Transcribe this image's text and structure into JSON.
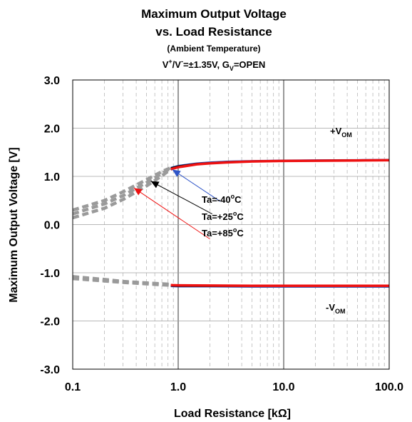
{
  "chart_data": {
    "type": "line",
    "title": "Maximum Output Voltage",
    "title_line2": "vs. Load Resistance",
    "subtitle": "(Ambient Temperature)",
    "condition": {
      "v": "V",
      "plus": "+",
      "slash": "/V",
      "minus": "-",
      "text1": "=±1.35V, G",
      "sub": "V",
      "text2": "=OPEN"
    },
    "xlabel": "Load Resistance [kΩ]",
    "ylabel": "Maximum Output Voltage [V]",
    "xscale": "log",
    "xlim": [
      0.1,
      100
    ],
    "ylim": [
      -3,
      3
    ],
    "x_ticks": [
      0.1,
      1,
      10,
      100
    ],
    "x_tick_labels": [
      "0.1",
      "1.0",
      "10.0",
      "100.0"
    ],
    "y_ticks": [
      3,
      2,
      1,
      0,
      -1,
      -2,
      -3
    ],
    "y_tick_labels": [
      "3.0",
      "2.0",
      "1.0",
      "0.0",
      "-1.0",
      "-2.0",
      "-3.0"
    ],
    "grid": true,
    "colors": {
      "ta_minus40": "#2f55c8",
      "ta_plus25": "#000000",
      "ta_plus85": "#ee1111",
      "extrapolated": "#9a9a9a"
    },
    "series": [
      {
        "name": "Ta=-40°C",
        "color": "#2f55c8",
        "x": [
          0.85,
          1,
          1.5,
          2,
          3,
          5,
          10,
          20,
          50,
          100
        ],
        "y": [
          1.18,
          1.22,
          1.27,
          1.29,
          1.31,
          1.32,
          1.33,
          1.335,
          1.34,
          1.345
        ],
        "x_neg": [
          0.85,
          1,
          2,
          5,
          10,
          20,
          50,
          100
        ],
        "y_neg": [
          -1.28,
          -1.285,
          -1.285,
          -1.29,
          -1.29,
          -1.29,
          -1.29,
          -1.29
        ],
        "extrap_x": [
          0.1,
          0.2,
          0.3,
          0.5,
          0.7,
          0.85
        ],
        "extrap_y": [
          0.3,
          0.5,
          0.68,
          0.93,
          1.1,
          1.18
        ],
        "extrap_x_neg": [
          0.1,
          0.2,
          0.3,
          0.5,
          0.7,
          0.85
        ],
        "extrap_y_neg": [
          -1.12,
          -1.17,
          -1.2,
          -1.23,
          -1.25,
          -1.26
        ]
      },
      {
        "name": "Ta=+25°C",
        "color": "#000000",
        "x": [
          0.85,
          1,
          1.5,
          2,
          3,
          5,
          10,
          20,
          50,
          100
        ],
        "y": [
          1.17,
          1.21,
          1.26,
          1.28,
          1.3,
          1.315,
          1.325,
          1.33,
          1.335,
          1.34
        ],
        "x_neg": [
          0.85,
          1,
          2,
          5,
          10,
          20,
          50,
          100
        ],
        "y_neg": [
          -1.27,
          -1.275,
          -1.278,
          -1.28,
          -1.28,
          -1.28,
          -1.28,
          -1.28
        ],
        "extrap_x": [
          0.1,
          0.2,
          0.3,
          0.5,
          0.7,
          0.85
        ],
        "extrap_y": [
          0.22,
          0.43,
          0.6,
          0.87,
          1.06,
          1.17
        ],
        "extrap_x_neg": [
          0.1,
          0.2,
          0.3,
          0.5,
          0.7,
          0.85
        ],
        "extrap_y_neg": [
          -1.1,
          -1.16,
          -1.19,
          -1.22,
          -1.24,
          -1.25
        ]
      },
      {
        "name": "Ta=+85°C",
        "color": "#ee1111",
        "x": [
          0.85,
          1,
          1.5,
          2,
          3,
          5,
          10,
          20,
          50,
          100
        ],
        "y": [
          1.15,
          1.19,
          1.25,
          1.27,
          1.29,
          1.31,
          1.32,
          1.325,
          1.33,
          1.335
        ],
        "x_neg": [
          0.85,
          1,
          2,
          5,
          10,
          20,
          50,
          100
        ],
        "y_neg": [
          -1.255,
          -1.26,
          -1.265,
          -1.27,
          -1.27,
          -1.27,
          -1.27,
          -1.27
        ],
        "extrap_x": [
          0.1,
          0.2,
          0.3,
          0.5,
          0.7,
          0.85
        ],
        "extrap_y": [
          0.14,
          0.34,
          0.52,
          0.8,
          1.01,
          1.15
        ],
        "extrap_x_neg": [
          0.1,
          0.2,
          0.3,
          0.5,
          0.7,
          0.85
        ],
        "extrap_y_neg": [
          -1.08,
          -1.14,
          -1.18,
          -1.21,
          -1.23,
          -1.24
        ]
      }
    ],
    "annotations": [
      {
        "text": "Ta=-40",
        "deg": "o",
        "unit": "C",
        "color": "#2f55c8",
        "arrow_to": [
          0.88,
          1.14
        ],
        "arrow_from": [
          2.5,
          0.48
        ]
      },
      {
        "text": "Ta=+25",
        "deg": "o",
        "unit": "C",
        "color": "#000000",
        "arrow_to": [
          0.55,
          0.9
        ],
        "arrow_from": [
          2.1,
          0.22
        ]
      },
      {
        "text": "Ta=+85",
        "deg": "o",
        "unit": "C",
        "color": "#ee1111",
        "arrow_to": [
          0.38,
          0.76
        ],
        "arrow_from": [
          2.0,
          -0.3
        ]
      }
    ],
    "labels": {
      "vom_pos": {
        "main": "+V",
        "sub": "OM"
      },
      "vom_neg": {
        "main": "-V",
        "sub": "OM"
      }
    }
  }
}
